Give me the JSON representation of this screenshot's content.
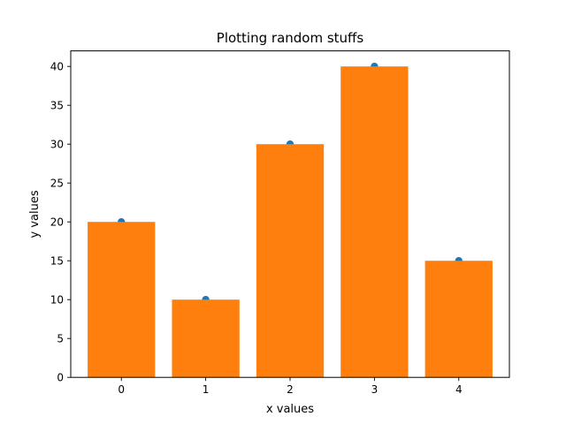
{
  "chart_data": {
    "type": "bar",
    "title": "Plotting random stuffs",
    "xlabel": "x values",
    "ylabel": "y values",
    "x": [
      0,
      1,
      2,
      3,
      4
    ],
    "x_tick_labels": [
      "0",
      "1",
      "2",
      "3",
      "4"
    ],
    "values": [
      20,
      10,
      30,
      40,
      15
    ],
    "scatter_points": [
      20,
      10,
      30,
      40,
      15
    ],
    "y_ticks": [
      0,
      5,
      10,
      15,
      20,
      25,
      30,
      35,
      40
    ],
    "y_tick_labels": [
      "0",
      "5",
      "10",
      "15",
      "20",
      "25",
      "30",
      "35",
      "40"
    ],
    "xlim": [
      -0.6,
      4.6
    ],
    "ylim": [
      0,
      42
    ],
    "grid": false,
    "legend": "none",
    "colors": {
      "bars": "#ff7f0e",
      "points": "#1f77b4"
    }
  }
}
